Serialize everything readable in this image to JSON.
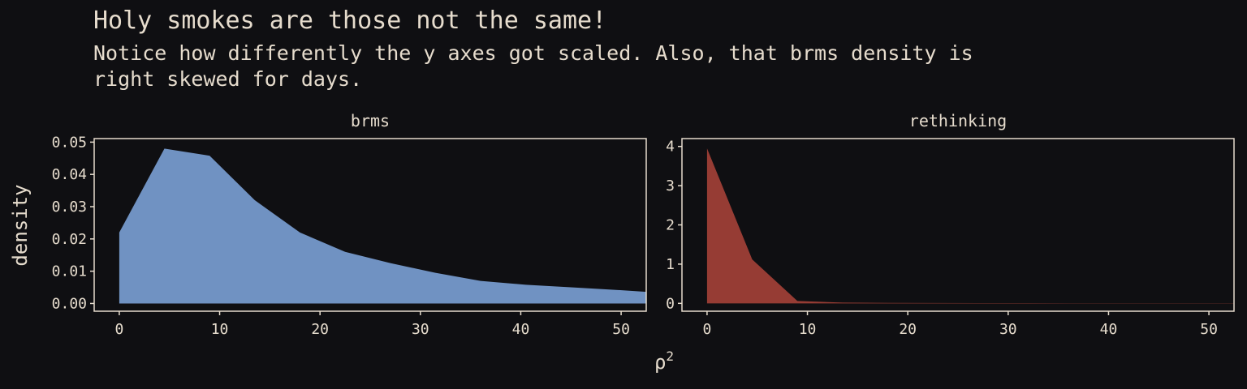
{
  "title": "Holy smokes are those not the same!",
  "subtitle_lines": [
    "Notice how differently the y axes got scaled. Also, that brms density is",
    "right skewed for days."
  ],
  "colors": {
    "background": "#0f0f12",
    "text": "#e6dccd",
    "brms": "#7092c2",
    "rethinking": "#963c34"
  },
  "chart_data": {
    "type": "area",
    "ylabel": "density",
    "xlabel_base": "ρ",
    "xlabel_sup": "2",
    "panels": [
      {
        "name": "brms",
        "color": "#7092c2",
        "xlim": [
          -2.5,
          52.5
        ],
        "ylim": [
          -0.0024,
          0.0511
        ],
        "xticks": [
          0,
          10,
          20,
          30,
          40,
          50
        ],
        "yticks": [
          0.0,
          0.01,
          0.02,
          0.03,
          0.04,
          0.05
        ],
        "ytick_labels": [
          "0.00",
          "0.01",
          "0.02",
          "0.03",
          "0.04",
          "0.05"
        ],
        "x": [
          0,
          4.5,
          9,
          13.5,
          18,
          22.5,
          27,
          31.5,
          36,
          40.5,
          45,
          49.5,
          52.5
        ],
        "y": [
          0.022,
          0.048,
          0.0458,
          0.032,
          0.022,
          0.016,
          0.0125,
          0.0095,
          0.007,
          0.0058,
          0.005,
          0.0042,
          0.0036
        ]
      },
      {
        "name": "rethinking",
        "color": "#963c34",
        "xlim": [
          -2.5,
          52.5
        ],
        "ylim": [
          -0.2,
          4.2
        ],
        "xticks": [
          0,
          10,
          20,
          30,
          40,
          50
        ],
        "yticks": [
          0,
          1,
          2,
          3,
          4
        ],
        "ytick_labels": [
          "0",
          "1",
          "2",
          "3",
          "4"
        ],
        "x": [
          0,
          4.5,
          9,
          13.5,
          18,
          22.5,
          27,
          31.5,
          36,
          40.5,
          45,
          49.5,
          52.5
        ],
        "y": [
          3.95,
          1.12,
          0.06,
          0.02,
          0.012,
          0.009,
          0.007,
          0.006,
          0.005,
          0.004,
          0.004,
          0.003,
          0.003
        ]
      }
    ]
  }
}
